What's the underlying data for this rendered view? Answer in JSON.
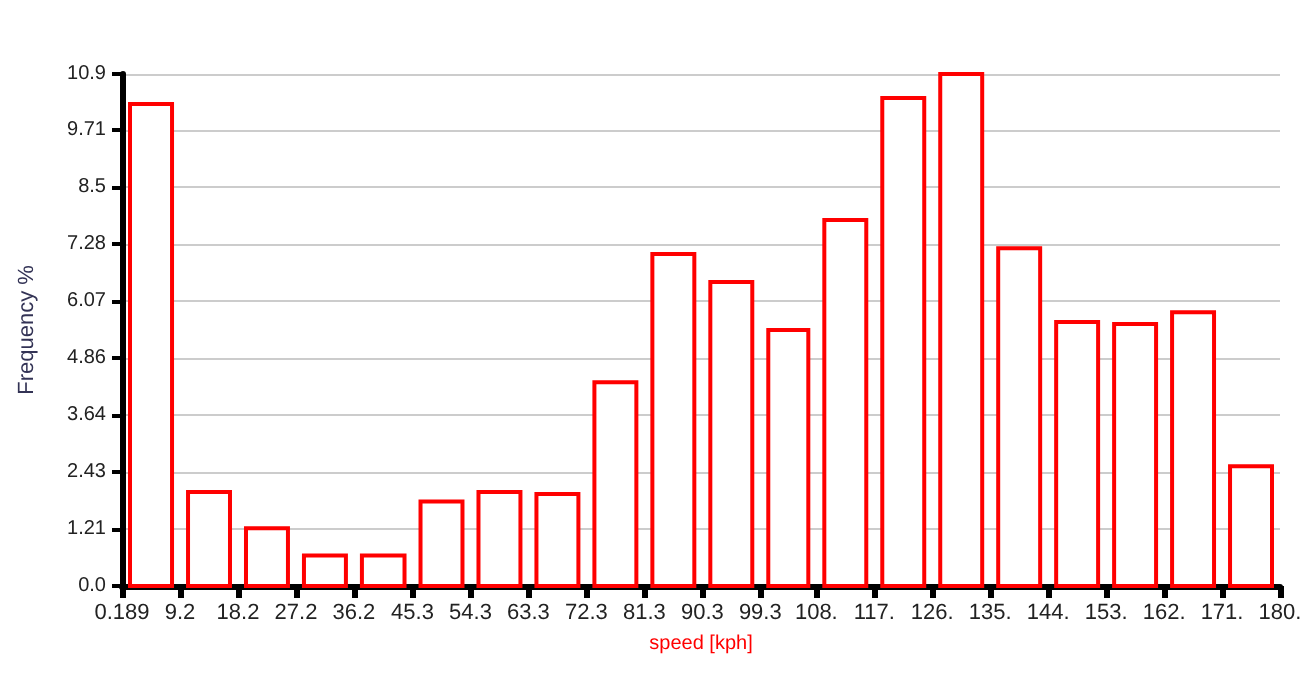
{
  "chart_data": {
    "type": "histogram",
    "xlabel": "speed [kph]",
    "ylabel": "Frequency %",
    "bins": [
      0.189,
      9.2,
      18.2,
      27.2,
      36.2,
      45.3,
      54.3,
      63.3,
      72.3,
      81.3,
      90.3,
      99.3,
      108,
      117,
      126,
      135,
      144,
      153,
      162,
      171,
      180
    ],
    "values": [
      10.26,
      2.0,
      1.23,
      0.65,
      0.65,
      1.8,
      2.0,
      1.96,
      4.34,
      7.07,
      6.47,
      5.45,
      7.79,
      10.39,
      10.9,
      7.19,
      5.62,
      5.58,
      5.83,
      2.55
    ],
    "color": "#ff0000",
    "xlim": [
      0.189,
      180
    ],
    "xticks": [
      0.189,
      9.2,
      18.2,
      27.2,
      36.2,
      45.3,
      54.3,
      63.3,
      72.3,
      81.3,
      90.3,
      99.3,
      {
        "value": 108,
        "label": "108."
      },
      {
        "value": 117,
        "label": "117."
      },
      {
        "value": 126,
        "label": "126."
      },
      {
        "value": 135,
        "label": "135."
      },
      {
        "value": 144,
        "label": "144."
      },
      {
        "value": 153,
        "label": "153."
      },
      {
        "value": 162,
        "label": "162."
      },
      {
        "value": 171,
        "label": "171."
      },
      {
        "value": 180,
        "label": "180."
      }
    ],
    "ylim": [
      0,
      10.9
    ],
    "yticks": [
      {
        "value": 0,
        "label": "0.0"
      },
      1.21,
      2.43,
      3.64,
      4.86,
      6.07,
      7.28,
      8.5,
      9.71,
      10.9
    ],
    "grid": "y"
  }
}
